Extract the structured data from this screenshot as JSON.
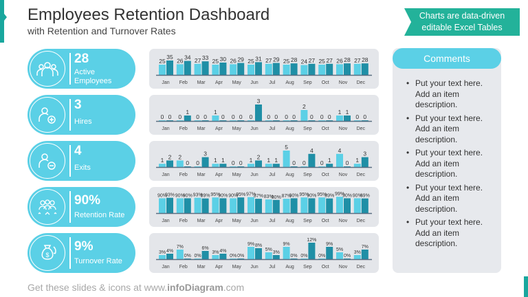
{
  "header": {
    "title": "Employees Retention Dashboard",
    "subtitle": "with Retention and Turnover Rates",
    "badge_line1": "Charts are data-driven",
    "badge_line2": "editable Excel Tables"
  },
  "kpis": [
    {
      "value": "28",
      "label1": "Active",
      "label2": "Employees",
      "icon": "team-icon"
    },
    {
      "value": "3",
      "label1": "Hires",
      "label2": "",
      "icon": "add-user-icon"
    },
    {
      "value": "4",
      "label1": "Exits",
      "label2": "",
      "icon": "remove-user-icon"
    },
    {
      "value": "90%",
      "label1": "Retention Rate",
      "label2": "",
      "icon": "star-team-icon"
    },
    {
      "value": "9%",
      "label1": "Turnover Rate",
      "label2": "",
      "icon": "money-bag-icon"
    }
  ],
  "comments": {
    "title": "Comments",
    "items": [
      "Put your text here. Add an item description.",
      "Put your text here. Add an item description.",
      "Put your text here. Add an item description.",
      "Put your text here. Add an item description.",
      "Put your text here. Add an item description."
    ]
  },
  "footer": {
    "prefix": "Get these slides & icons at www.",
    "brand": "infoDiagram",
    "suffix": ".com"
  },
  "colors": {
    "light": "#5bd0e6",
    "dark": "#1f8fa6",
    "panel": "#e4e6ea",
    "accent": "#23b29a"
  },
  "chart_data": [
    {
      "type": "bar",
      "categories": [
        "Jan",
        "Feb",
        "Mar",
        "Apr",
        "May",
        "Jun",
        "Jul",
        "Aug",
        "Sep",
        "Oct",
        "Nov",
        "Dec"
      ],
      "series": [
        {
          "values": [
            25,
            26,
            27,
            25,
            26,
            25,
            27,
            25,
            24,
            25,
            26,
            27
          ]
        },
        {
          "values": [
            35,
            34,
            33,
            30,
            29,
            31,
            29,
            28,
            27,
            27,
            28,
            28
          ]
        }
      ],
      "ylim": [
        0,
        40
      ],
      "labels_percent": false
    },
    {
      "type": "bar",
      "categories": [
        "Jan",
        "Feb",
        "Mar",
        "Apr",
        "May",
        "Jun",
        "Jul",
        "Aug",
        "Sep",
        "Oct",
        "Nov",
        "Dec"
      ],
      "series": [
        {
          "values": [
            0,
            0,
            0,
            1,
            0,
            0,
            0,
            0,
            2,
            0,
            1,
            0
          ]
        },
        {
          "values": [
            0,
            1,
            0,
            0,
            0,
            3,
            0,
            0,
            0,
            0,
            1,
            0
          ]
        }
      ],
      "ylim": [
        0,
        3
      ],
      "labels_percent": false
    },
    {
      "type": "bar",
      "categories": [
        "Jan",
        "Feb",
        "Mar",
        "Apr",
        "May",
        "Jun",
        "Jul",
        "Aug",
        "Sep",
        "Oct",
        "Nov",
        "Dec"
      ],
      "series": [
        {
          "values": [
            1,
            2,
            0,
            1,
            0,
            1,
            1,
            5,
            0,
            0,
            4,
            1
          ]
        },
        {
          "values": [
            2,
            0,
            3,
            1,
            0,
            2,
            1,
            0,
            4,
            1,
            0,
            3
          ]
        }
      ],
      "ylim": [
        0,
        5
      ],
      "labels_percent": false
    },
    {
      "type": "bar",
      "categories": [
        "Jan",
        "Feb",
        "Mar",
        "Apr",
        "May",
        "Jun",
        "Jul",
        "Aug",
        "Sep",
        "Oct",
        "Nov",
        "Dec"
      ],
      "series": [
        {
          "values": [
            90,
            90,
            93,
            95,
            90,
            97,
            83,
            87,
            95,
            95,
            99,
            90
          ]
        },
        {
          "values": [
            93,
            90,
            89,
            90,
            95,
            87,
            80,
            90,
            90,
            89,
            90,
            89
          ]
        }
      ],
      "ylim": [
        0,
        100
      ],
      "labels_percent": true
    },
    {
      "type": "bar",
      "categories": [
        "Jan",
        "Feb",
        "Mar",
        "Apr",
        "May",
        "Jun",
        "Jul",
        "Aug",
        "Sep",
        "Oct",
        "Nov",
        "Dec"
      ],
      "series": [
        {
          "values": [
            3,
            7,
            0,
            3,
            0,
            9,
            5,
            9,
            0,
            0,
            5,
            3
          ]
        },
        {
          "values": [
            4,
            0,
            6,
            4,
            0,
            8,
            3,
            0,
            12,
            9,
            0,
            7
          ]
        }
      ],
      "ylim": [
        0,
        12
      ],
      "labels_percent": true
    }
  ]
}
